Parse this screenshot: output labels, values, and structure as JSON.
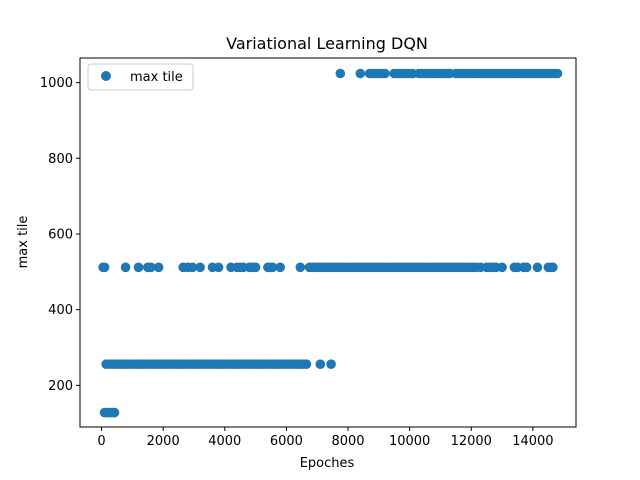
{
  "chart_data": {
    "type": "scatter",
    "title": "Variational Learning DQN",
    "xlabel": "Epoches",
    "ylabel": "max tile",
    "xlim": [
      -700,
      15400
    ],
    "ylim": [
      90,
      1065
    ],
    "xticks": [
      0,
      2000,
      4000,
      6000,
      8000,
      10000,
      12000,
      14000
    ],
    "yticks": [
      200,
      400,
      600,
      800,
      1000
    ],
    "xtick_labels": [
      "0",
      "2000",
      "4000",
      "6000",
      "8000",
      "10000",
      "12000",
      "14000"
    ],
    "ytick_labels": [
      "200",
      "400",
      "600",
      "800",
      "1000"
    ],
    "grid": false,
    "legend": "upper-left",
    "series": [
      {
        "name": "max tile",
        "color": "#1f77b4",
        "marker": "circle",
        "points": {
          "128": [
            100,
            200,
            260,
            320,
            380,
            420
          ],
          "256": [
            150,
            250,
            350,
            450,
            550,
            650,
            750,
            850,
            950,
            1050,
            1150,
            1250,
            1350,
            1450,
            1550,
            1650,
            1750,
            1850,
            1950,
            2050,
            2150,
            2250,
            2350,
            2450,
            2550,
            2650,
            2750,
            2850,
            2950,
            3050,
            3150,
            3250,
            3350,
            3450,
            3550,
            3650,
            3750,
            3850,
            3950,
            4050,
            4150,
            4250,
            4350,
            4450,
            4550,
            4650,
            4750,
            4850,
            4950,
            5050,
            5150,
            5250,
            5350,
            5450,
            5550,
            5650,
            5750,
            5850,
            5950,
            6050,
            6150,
            6250,
            6350,
            6450,
            6550,
            6650,
            7100,
            7450
          ],
          "512": [
            50,
            100,
            780,
            1200,
            1500,
            1600,
            1850,
            2650,
            2800,
            2950,
            3200,
            3600,
            3800,
            4200,
            4400,
            4500,
            4600,
            4800,
            4900,
            5000,
            5400,
            5500,
            5550,
            5800,
            6450,
            6750,
            6850,
            6950,
            7050,
            7150,
            7250,
            7350,
            7450,
            7550,
            7650,
            7750,
            7850,
            7950,
            8050,
            8150,
            8250,
            8350,
            8450,
            8550,
            8650,
            8750,
            8850,
            8950,
            9050,
            9150,
            9250,
            9350,
            9450,
            9550,
            9650,
            9750,
            9850,
            9950,
            10050,
            10150,
            10250,
            10350,
            10450,
            10550,
            10650,
            10750,
            10850,
            10950,
            11050,
            11150,
            11250,
            11350,
            11450,
            11550,
            11650,
            11750,
            11850,
            11950,
            12050,
            12150,
            12300,
            12500,
            12600,
            12700,
            12800,
            13000,
            13400,
            13500,
            13700,
            13800,
            14150,
            14500,
            14600,
            14650
          ],
          "1024": [
            7750,
            8400,
            8700,
            8800,
            8900,
            9000,
            9100,
            9200,
            9500,
            9600,
            9700,
            9800,
            9900,
            10000,
            10100,
            10300,
            10400,
            10500,
            10600,
            10700,
            10800,
            10900,
            11000,
            11100,
            11200,
            11300,
            11500,
            11600,
            11700,
            11800,
            11900,
            12000,
            12100,
            12200,
            12300,
            12400,
            12500,
            12600,
            12700,
            12800,
            12900,
            13000,
            13100,
            13200,
            13300,
            13400,
            13500,
            13600,
            13700,
            13800,
            13900,
            14000,
            14100,
            14200,
            14300,
            14400,
            14500,
            14600,
            14700,
            14800
          ]
        }
      }
    ]
  }
}
